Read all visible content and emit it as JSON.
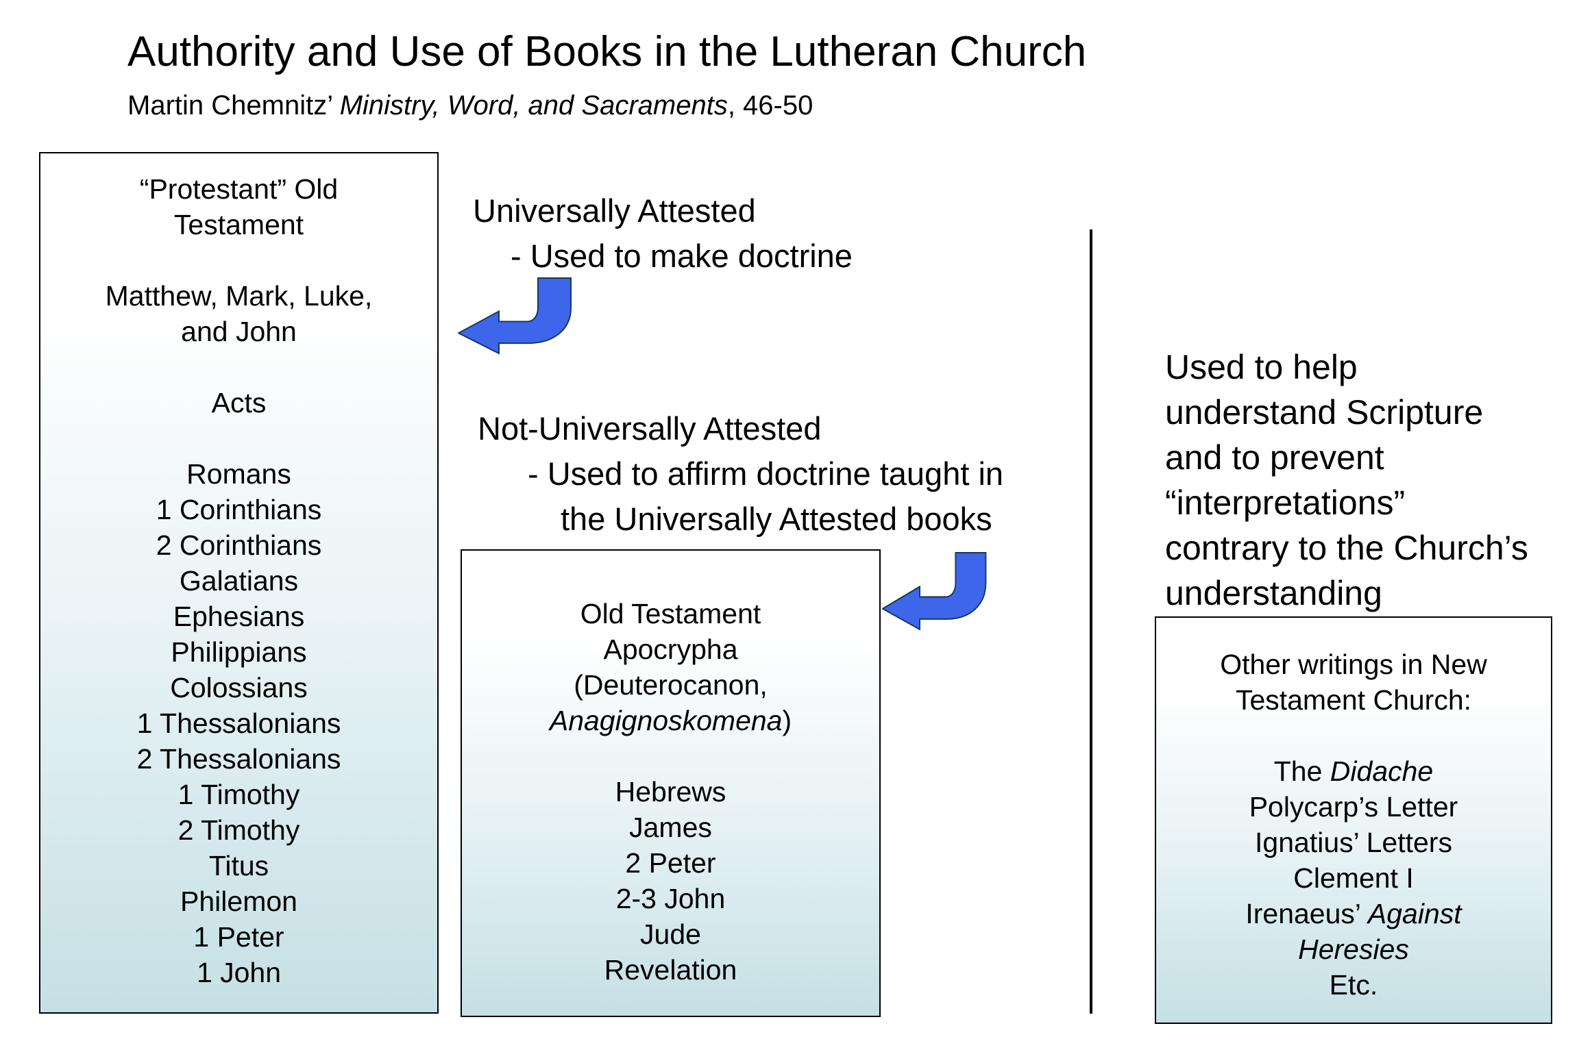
{
  "title": "Authority and Use of Books in the Lutheran Church",
  "subtitle": {
    "prefix": "Martin Chemnitz’ ",
    "italic": "Ministry, Word, and Sacraments",
    "suffix": ", 46-50"
  },
  "sections": {
    "universally": {
      "title": "Universally Attested",
      "sub": "- Used to make doctrine"
    },
    "not_universally": {
      "title": "Not-Universally Attested",
      "sub1": "- Used to affirm doctrine taught in",
      "sub2": "the Universally Attested books"
    },
    "helper": {
      "lines": [
        "Used to help",
        "understand Scripture",
        "and to prevent",
        "“interpretations”",
        "contrary to the Church’s",
        "understanding"
      ]
    }
  },
  "boxes": {
    "left": {
      "lines": [
        [
          "“Protestant” Old"
        ],
        [
          "Testament"
        ],
        [],
        [
          "Matthew, Mark, Luke,"
        ],
        [
          "and John"
        ],
        [],
        [
          "Acts"
        ],
        [],
        [
          "Romans"
        ],
        [
          "1 Corinthians"
        ],
        [
          "2 Corinthians"
        ],
        [
          "Galatians"
        ],
        [
          "Ephesians"
        ],
        [
          "Philippians"
        ],
        [
          "Colossians"
        ],
        [
          "1 Thessalonians"
        ],
        [
          "2 Thessalonians"
        ],
        [
          "1 Timothy"
        ],
        [
          "2 Timothy"
        ],
        [
          "Titus"
        ],
        [
          "Philemon"
        ],
        [
          "1 Peter"
        ],
        [
          "1 John"
        ]
      ]
    },
    "middle": {
      "lines": [
        [
          "Old Testament"
        ],
        [
          "Apocrypha"
        ],
        [
          "(Deuterocanon,"
        ],
        [
          {
            "i": "Anagignoskomena"
          },
          ")"
        ],
        [],
        [
          "Hebrews"
        ],
        [
          "James"
        ],
        [
          "2 Peter"
        ],
        [
          "2-3 John"
        ],
        [
          "Jude"
        ],
        [
          "Revelation"
        ]
      ]
    },
    "right": {
      "lines": [
        [
          "Other writings in New"
        ],
        [
          "Testament Church:"
        ],
        [],
        [
          "The ",
          {
            "i": "Didache"
          }
        ],
        [
          "Polycarp’s Letter"
        ],
        [
          "Ignatius’ Letters"
        ],
        [
          "Clement I"
        ],
        [
          "Irenaeus’ ",
          {
            "i": "Against"
          }
        ],
        [
          {
            "i": "Heresies"
          }
        ],
        [
          "Etc."
        ]
      ]
    }
  },
  "colors": {
    "arrow_fill": "#3D66EA",
    "arrow_stroke": "#16365C",
    "box_border": "#000000",
    "box_top": "#FFFFFF",
    "box_bottom": "#C5E0E5",
    "divider": "#000000",
    "text": "#000000"
  }
}
